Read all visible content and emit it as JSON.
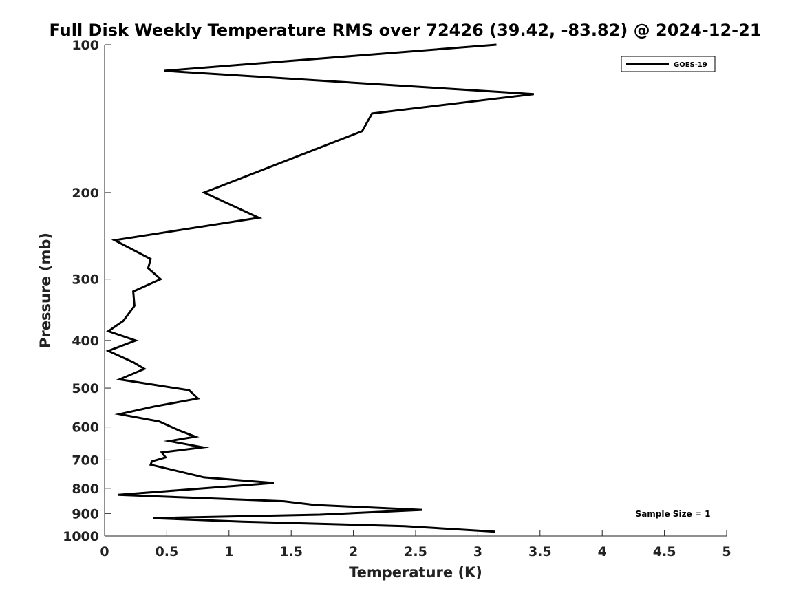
{
  "chart_data": {
    "type": "line",
    "title": "Full Disk Weekly Temperature RMS over 72426 (39.42, -83.82) @ 2024-12-21",
    "xlabel": "Temperature (K)",
    "ylabel": "Pressure (mb)",
    "xlim": [
      0,
      5
    ],
    "ylim": [
      1000,
      100
    ],
    "y_scale": "log",
    "grid": false,
    "legend_position": "top-right",
    "x_ticks": [
      0,
      0.5,
      1,
      1.5,
      2,
      2.5,
      3,
      3.5,
      4,
      4.5,
      5
    ],
    "x_tick_labels": [
      "0",
      "0.5",
      "1",
      "1.5",
      "2",
      "2.5",
      "3",
      "3.5",
      "4",
      "4.5",
      "5"
    ],
    "y_ticks": [
      100,
      200,
      300,
      400,
      500,
      600,
      700,
      800,
      900,
      1000
    ],
    "y_tick_labels": [
      "100",
      "200",
      "300",
      "400",
      "500",
      "600",
      "700",
      "800",
      "900",
      "1000"
    ],
    "series": [
      {
        "name": "GOES-19",
        "color": "#000000",
        "points": [
          [
            3.15,
            100
          ],
          [
            0.48,
            113
          ],
          [
            3.45,
            126
          ],
          [
            2.15,
            138
          ],
          [
            2.07,
            150
          ],
          [
            0.8,
            200
          ],
          [
            1.24,
            225
          ],
          [
            0.08,
            250
          ],
          [
            0.37,
            273
          ],
          [
            0.35,
            285
          ],
          [
            0.45,
            300
          ],
          [
            0.23,
            318
          ],
          [
            0.24,
            340
          ],
          [
            0.15,
            365
          ],
          [
            0.03,
            383
          ],
          [
            0.25,
            400
          ],
          [
            0.03,
            420
          ],
          [
            0.23,
            443
          ],
          [
            0.32,
            457
          ],
          [
            0.12,
            480
          ],
          [
            0.68,
            505
          ],
          [
            0.75,
            525
          ],
          [
            0.4,
            545
          ],
          [
            0.12,
            565
          ],
          [
            0.44,
            585
          ],
          [
            0.6,
            610
          ],
          [
            0.73,
            628
          ],
          [
            0.52,
            641
          ],
          [
            0.79,
            660
          ],
          [
            0.46,
            676
          ],
          [
            0.49,
            692
          ],
          [
            0.38,
            705
          ],
          [
            0.37,
            716
          ],
          [
            0.8,
            760
          ],
          [
            1.36,
            780
          ],
          [
            0.11,
            825
          ],
          [
            1.44,
            850
          ],
          [
            1.69,
            865
          ],
          [
            2.55,
            885
          ],
          [
            1.73,
            905
          ],
          [
            0.39,
            920
          ],
          [
            1.11,
            935
          ],
          [
            2.41,
            955
          ],
          [
            3.14,
            980
          ]
        ]
      }
    ],
    "annotation": "Sample Size = 1"
  }
}
